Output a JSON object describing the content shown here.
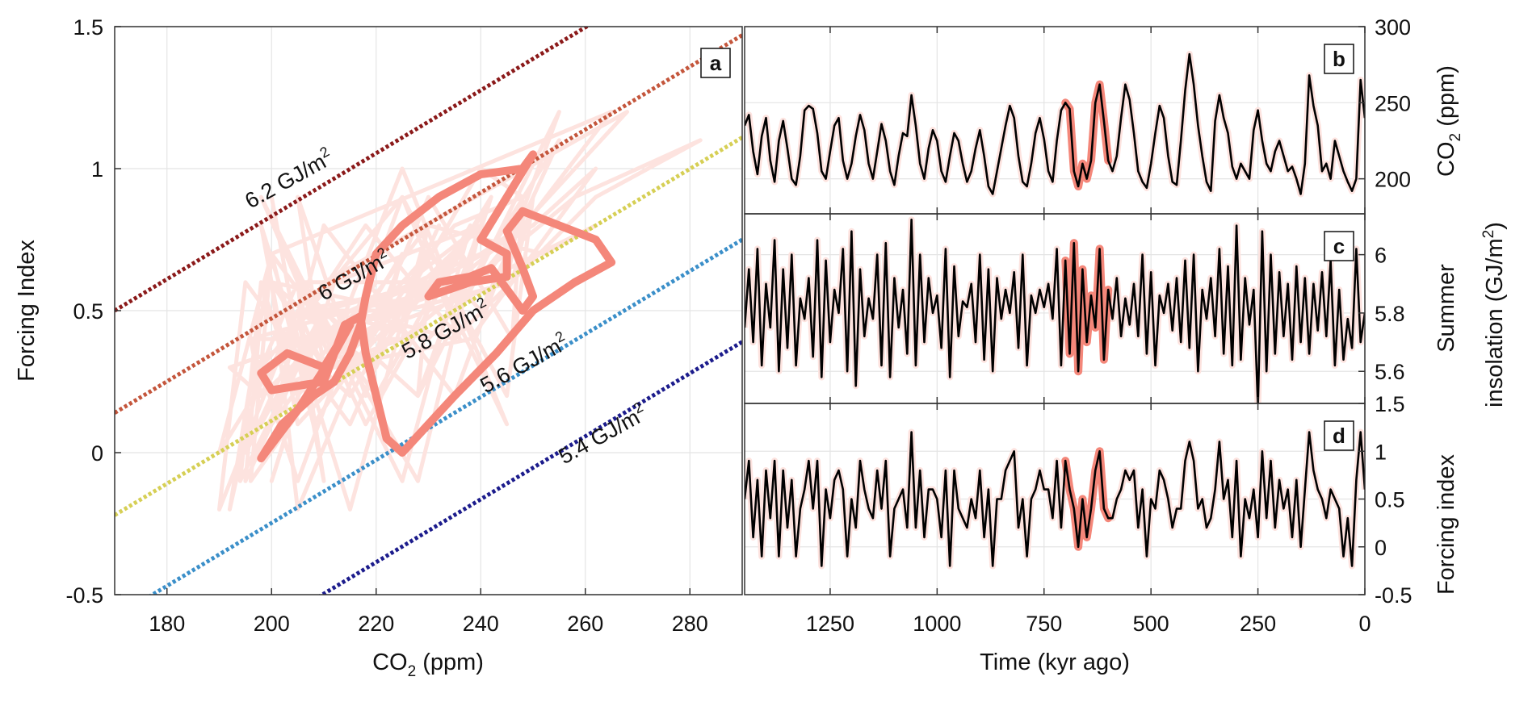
{
  "chart_data": [
    {
      "panel": "a",
      "type": "line",
      "xlabel": "CO2 (ppm)",
      "ylabel": "Forcing Index",
      "xlim": [
        170,
        290
      ],
      "ylim": [
        -0.5,
        1.5
      ],
      "xticks": [
        180,
        200,
        220,
        240,
        260,
        280
      ],
      "yticks": [
        -0.5,
        0,
        0.5,
        1,
        1.5
      ],
      "ytick_labels": [
        "-0.5",
        "0",
        "0.5",
        "1",
        "1.5"
      ],
      "grid": true,
      "iso_lines": [
        {
          "label": "6.2 GJ/m",
          "sup": "2",
          "insolation": 6.2,
          "color": "#8b1a1a",
          "points": [
            [
              170,
              0.5
            ],
            [
              290,
              1.83
            ]
          ]
        },
        {
          "label": "6 GJ/m",
          "sup": "2",
          "insolation": 6.0,
          "color": "#c4563c",
          "points": [
            [
              170,
              0.14
            ],
            [
              290,
              1.47
            ]
          ]
        },
        {
          "label": "5.8 GJ/m",
          "sup": "2",
          "insolation": 5.8,
          "color": "#d6cf55",
          "points": [
            [
              170,
              -0.22
            ],
            [
              290,
              1.11
            ]
          ]
        },
        {
          "label": "5.6 GJ/m",
          "sup": "2",
          "insolation": 5.6,
          "color": "#3b8fc9",
          "points": [
            [
              170,
              -0.58
            ],
            [
              290,
              0.75
            ]
          ]
        },
        {
          "label": "5.4 GJ/m",
          "sup": "2",
          "insolation": 5.4,
          "color": "#1c1c8c",
          "points": [
            [
              170,
              -0.94
            ],
            [
              290,
              0.39
            ]
          ]
        }
      ],
      "highlight_trajectory": [
        [
          198,
          -0.02
        ],
        [
          205,
          0.15
        ],
        [
          212,
          0.35
        ],
        [
          215,
          0.45
        ],
        [
          210,
          0.3
        ],
        [
          203,
          0.35
        ],
        [
          198,
          0.28
        ],
        [
          200,
          0.22
        ],
        [
          210,
          0.25
        ],
        [
          212,
          0.35
        ],
        [
          214,
          0.45
        ],
        [
          217,
          0.48
        ],
        [
          218,
          0.35
        ],
        [
          220,
          0.2
        ],
        [
          222,
          0.05
        ],
        [
          225,
          0.0
        ],
        [
          235,
          0.2
        ],
        [
          243,
          0.35
        ],
        [
          250,
          0.5
        ],
        [
          258,
          0.6
        ],
        [
          265,
          0.67
        ],
        [
          262,
          0.75
        ],
        [
          255,
          0.8
        ],
        [
          248,
          0.85
        ],
        [
          245,
          0.78
        ],
        [
          248,
          0.65
        ],
        [
          250,
          0.55
        ],
        [
          248,
          0.5
        ],
        [
          244,
          0.6
        ],
        [
          242,
          0.65
        ],
        [
          238,
          0.62
        ],
        [
          232,
          0.6
        ],
        [
          230,
          0.55
        ],
        [
          238,
          0.6
        ],
        [
          245,
          0.62
        ],
        [
          245,
          0.7
        ],
        [
          240,
          0.75
        ],
        [
          245,
          0.9
        ],
        [
          250,
          1.05
        ],
        [
          248,
          1.0
        ],
        [
          240,
          0.98
        ],
        [
          232,
          0.9
        ],
        [
          225,
          0.8
        ],
        [
          220,
          0.7
        ],
        [
          218,
          0.55
        ],
        [
          217,
          0.45
        ],
        [
          215,
          0.35
        ],
        [
          212,
          0.25
        ],
        [
          208,
          0.2
        ],
        [
          202,
          0.1
        ],
        [
          198,
          -0.02
        ]
      ],
      "background_color": "#fde3df",
      "highlight_color": "#f4877a"
    },
    {
      "panel": "b",
      "type": "line",
      "ylabel": "CO2 (ppm)",
      "ylim": [
        177,
        300
      ],
      "yticks": [
        200,
        250,
        300
      ],
      "ytick_labels": [
        "200",
        "250",
        "300"
      ]
    },
    {
      "panel": "c",
      "type": "line",
      "ylabel_line1": "Summer",
      "ylabel_line2": "insolation (GJ/m",
      "ylabel_sup": "2",
      "ylabel_close": ")",
      "ylim": [
        5.49,
        6.14
      ],
      "yticks": [
        5.6,
        5.8,
        6.0
      ],
      "ytick_labels": [
        "5.6",
        "5.8",
        "6"
      ]
    },
    {
      "panel": "d",
      "type": "line",
      "ylabel": "Forcing index",
      "ylim": [
        -0.5,
        1.5
      ],
      "yticks": [
        -0.5,
        0,
        0.5,
        1,
        1.5
      ],
      "ytick_labels": [
        "-0.5",
        "0",
        "0.5",
        "1",
        "1.5"
      ]
    }
  ],
  "time_axis": {
    "xlabel": "Time (kyr ago)",
    "xlim": [
      1450,
      0
    ],
    "xticks": [
      1250,
      1000,
      750,
      500,
      250,
      0
    ],
    "step_kyr": 10,
    "start_kyr": 1450,
    "highlight_range": [
      700,
      600
    ],
    "line_color": "#000000",
    "glow_color": "#fde3df",
    "highlight_color": "#f4877a"
  },
  "series": {
    "co2": [
      235,
      242,
      218,
      203,
      228,
      240,
      212,
      198,
      225,
      238,
      220,
      200,
      196,
      215,
      245,
      248,
      246,
      230,
      205,
      200,
      218,
      235,
      240,
      212,
      200,
      210,
      228,
      242,
      232,
      210,
      200,
      218,
      236,
      225,
      205,
      196,
      215,
      230,
      228,
      255,
      235,
      210,
      200,
      220,
      232,
      225,
      205,
      198,
      215,
      230,
      225,
      210,
      198,
      205,
      220,
      232,
      215,
      195,
      190,
      205,
      220,
      235,
      248,
      240,
      215,
      198,
      195,
      210,
      230,
      240,
      226,
      205,
      198,
      225,
      245,
      250,
      246,
      205,
      195,
      210,
      200,
      212,
      250,
      262,
      238,
      212,
      205,
      215,
      240,
      262,
      252,
      230,
      205,
      198,
      194,
      210,
      230,
      248,
      240,
      215,
      198,
      196,
      225,
      258,
      282,
      262,
      235,
      215,
      198,
      192,
      238,
      255,
      240,
      230,
      208,
      200,
      210,
      205,
      200,
      232,
      245,
      225,
      210,
      205,
      218,
      225,
      215,
      205,
      208,
      200,
      190,
      210,
      268,
      248,
      235,
      205,
      210,
      200,
      225,
      215,
      205,
      198,
      192,
      200,
      265,
      240
    ],
    "insolation": [
      5.75,
      5.95,
      5.7,
      6.02,
      5.62,
      5.9,
      5.75,
      6.05,
      5.6,
      5.95,
      5.68,
      6.0,
      5.62,
      5.85,
      5.78,
      5.92,
      5.65,
      6.05,
      5.58,
      5.98,
      5.7,
      5.88,
      5.8,
      6.02,
      5.6,
      6.08,
      5.55,
      5.95,
      5.72,
      5.85,
      5.78,
      6.0,
      5.62,
      6.04,
      5.58,
      5.92,
      5.75,
      5.88,
      5.66,
      6.12,
      5.62,
      6.0,
      5.7,
      5.92,
      5.8,
      5.86,
      5.68,
      6.02,
      5.58,
      5.96,
      5.72,
      5.84,
      5.82,
      5.9,
      5.7,
      6.0,
      5.64,
      5.95,
      5.6,
      5.92,
      5.78,
      5.88,
      5.8,
      5.94,
      5.68,
      6.0,
      5.62,
      5.86,
      5.8,
      5.88,
      5.82,
      5.9,
      5.78,
      6.02,
      5.62,
      5.98,
      5.66,
      6.04,
      5.6,
      5.95,
      5.7,
      5.86,
      5.75,
      6.02,
      5.64,
      5.88,
      5.78,
      5.92,
      5.72,
      5.85,
      5.76,
      5.9,
      5.72,
      6.0,
      5.66,
      5.94,
      5.62,
      5.86,
      5.8,
      5.9,
      5.74,
      5.92,
      5.7,
      5.98,
      5.68,
      6.0,
      5.6,
      5.88,
      5.78,
      5.92,
      5.72,
      6.02,
      5.66,
      5.96,
      5.62,
      6.1,
      5.64,
      5.92,
      5.76,
      5.88,
      5.48,
      6.08,
      5.6,
      6.0,
      5.66,
      5.94,
      5.72,
      5.9,
      5.64,
      5.96,
      5.7,
      5.92,
      5.66,
      5.9,
      5.74,
      5.94,
      5.72,
      5.98,
      5.62,
      5.88,
      5.64,
      5.78,
      5.68,
      6.02,
      5.7,
      5.8
    ],
    "forcing": [
      0.5,
      0.9,
      0.1,
      0.7,
      -0.1,
      0.8,
      0.3,
      0.9,
      -0.1,
      0.8,
      0.2,
      0.7,
      -0.1,
      0.4,
      0.6,
      0.9,
      0.4,
      0.9,
      -0.2,
      0.6,
      0.3,
      0.7,
      0.8,
      0.6,
      -0.1,
      0.5,
      0.2,
      0.9,
      0.6,
      0.4,
      0.3,
      0.8,
      0.4,
      0.9,
      -0.1,
      0.4,
      0.5,
      0.6,
      0.2,
      1.2,
      0.2,
      0.8,
      0.1,
      0.6,
      0.6,
      0.5,
      0.1,
      0.8,
      -0.2,
      0.8,
      0.4,
      0.3,
      0.2,
      0.5,
      0.3,
      0.8,
      0.1,
      0.6,
      -0.2,
      0.5,
      0.5,
      0.8,
      0.9,
      1.0,
      0.2,
      0.5,
      -0.1,
      0.5,
      0.6,
      0.8,
      0.6,
      0.6,
      0.3,
      0.9,
      0.2,
      0.9,
      0.6,
      0.4,
      0.0,
      0.5,
      0.1,
      0.4,
      0.8,
      1.0,
      0.4,
      0.3,
      0.3,
      0.5,
      0.6,
      0.8,
      0.7,
      0.8,
      0.2,
      0.6,
      -0.1,
      0.5,
      0.4,
      0.8,
      0.7,
      0.5,
      0.2,
      0.4,
      0.4,
      0.9,
      1.1,
      0.9,
      0.4,
      0.5,
      0.2,
      0.3,
      0.6,
      1.1,
      0.5,
      0.7,
      0.1,
      0.9,
      -0.1,
      0.5,
      0.3,
      0.6,
      0.1,
      1.0,
      0.3,
      0.9,
      0.2,
      0.7,
      0.4,
      0.6,
      0.1,
      0.7,
      0.0,
      0.6,
      1.2,
      0.8,
      0.6,
      0.5,
      0.3,
      0.6,
      0.5,
      0.4,
      -0.1,
      0.3,
      -0.2,
      0.7,
      1.2,
      0.6
    ]
  },
  "labels": {
    "a": "a",
    "b": "b",
    "c": "c",
    "d": "d",
    "co2_sub": "2",
    "co2_prefix": "CO",
    "co2_suffix": " (ppm)"
  }
}
